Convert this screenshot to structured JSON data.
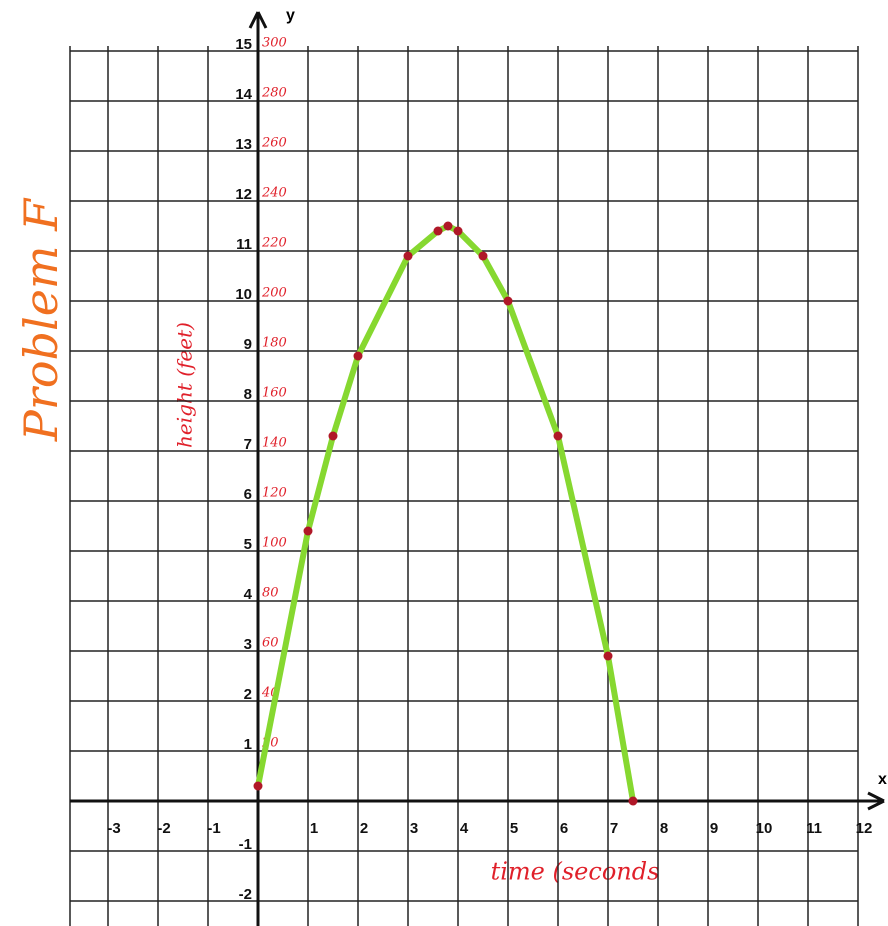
{
  "chart_data": {
    "type": "line",
    "title": "Problem F",
    "x_label": "time (seconds",
    "y_label": "height (feet)",
    "x_axis_name": "x",
    "y_axis_name": "y",
    "x": [
      0,
      1,
      1.5,
      2,
      3,
      3.6,
      3.8,
      4,
      4.5,
      5,
      6,
      7,
      7.5
    ],
    "series": [
      {
        "color": "#86d830",
        "point_color": "#b01828",
        "values": [
          0.3,
          5.4,
          7.3,
          8.9,
          10.9,
          11.4,
          11.5,
          11.4,
          10.9,
          10,
          7.3,
          2.9,
          0
        ]
      }
    ],
    "xlim": [
      -3.76,
      12.6
    ],
    "ylim": [
      -2.5,
      15.1
    ],
    "xticks": [
      -3,
      -2,
      -1,
      1,
      2,
      3,
      4,
      5,
      6,
      7,
      8,
      9,
      10,
      11,
      12
    ],
    "yticks": [
      -2,
      -1,
      1,
      2,
      3,
      4,
      5,
      6,
      7,
      8,
      9,
      10,
      11,
      12,
      13,
      14,
      15
    ],
    "y2lim": [
      -50,
      302
    ],
    "y2ticks": [
      20,
      40,
      60,
      80,
      100,
      120,
      140,
      160,
      180,
      200,
      220,
      240,
      260,
      280,
      300
    ],
    "grid": true
  }
}
